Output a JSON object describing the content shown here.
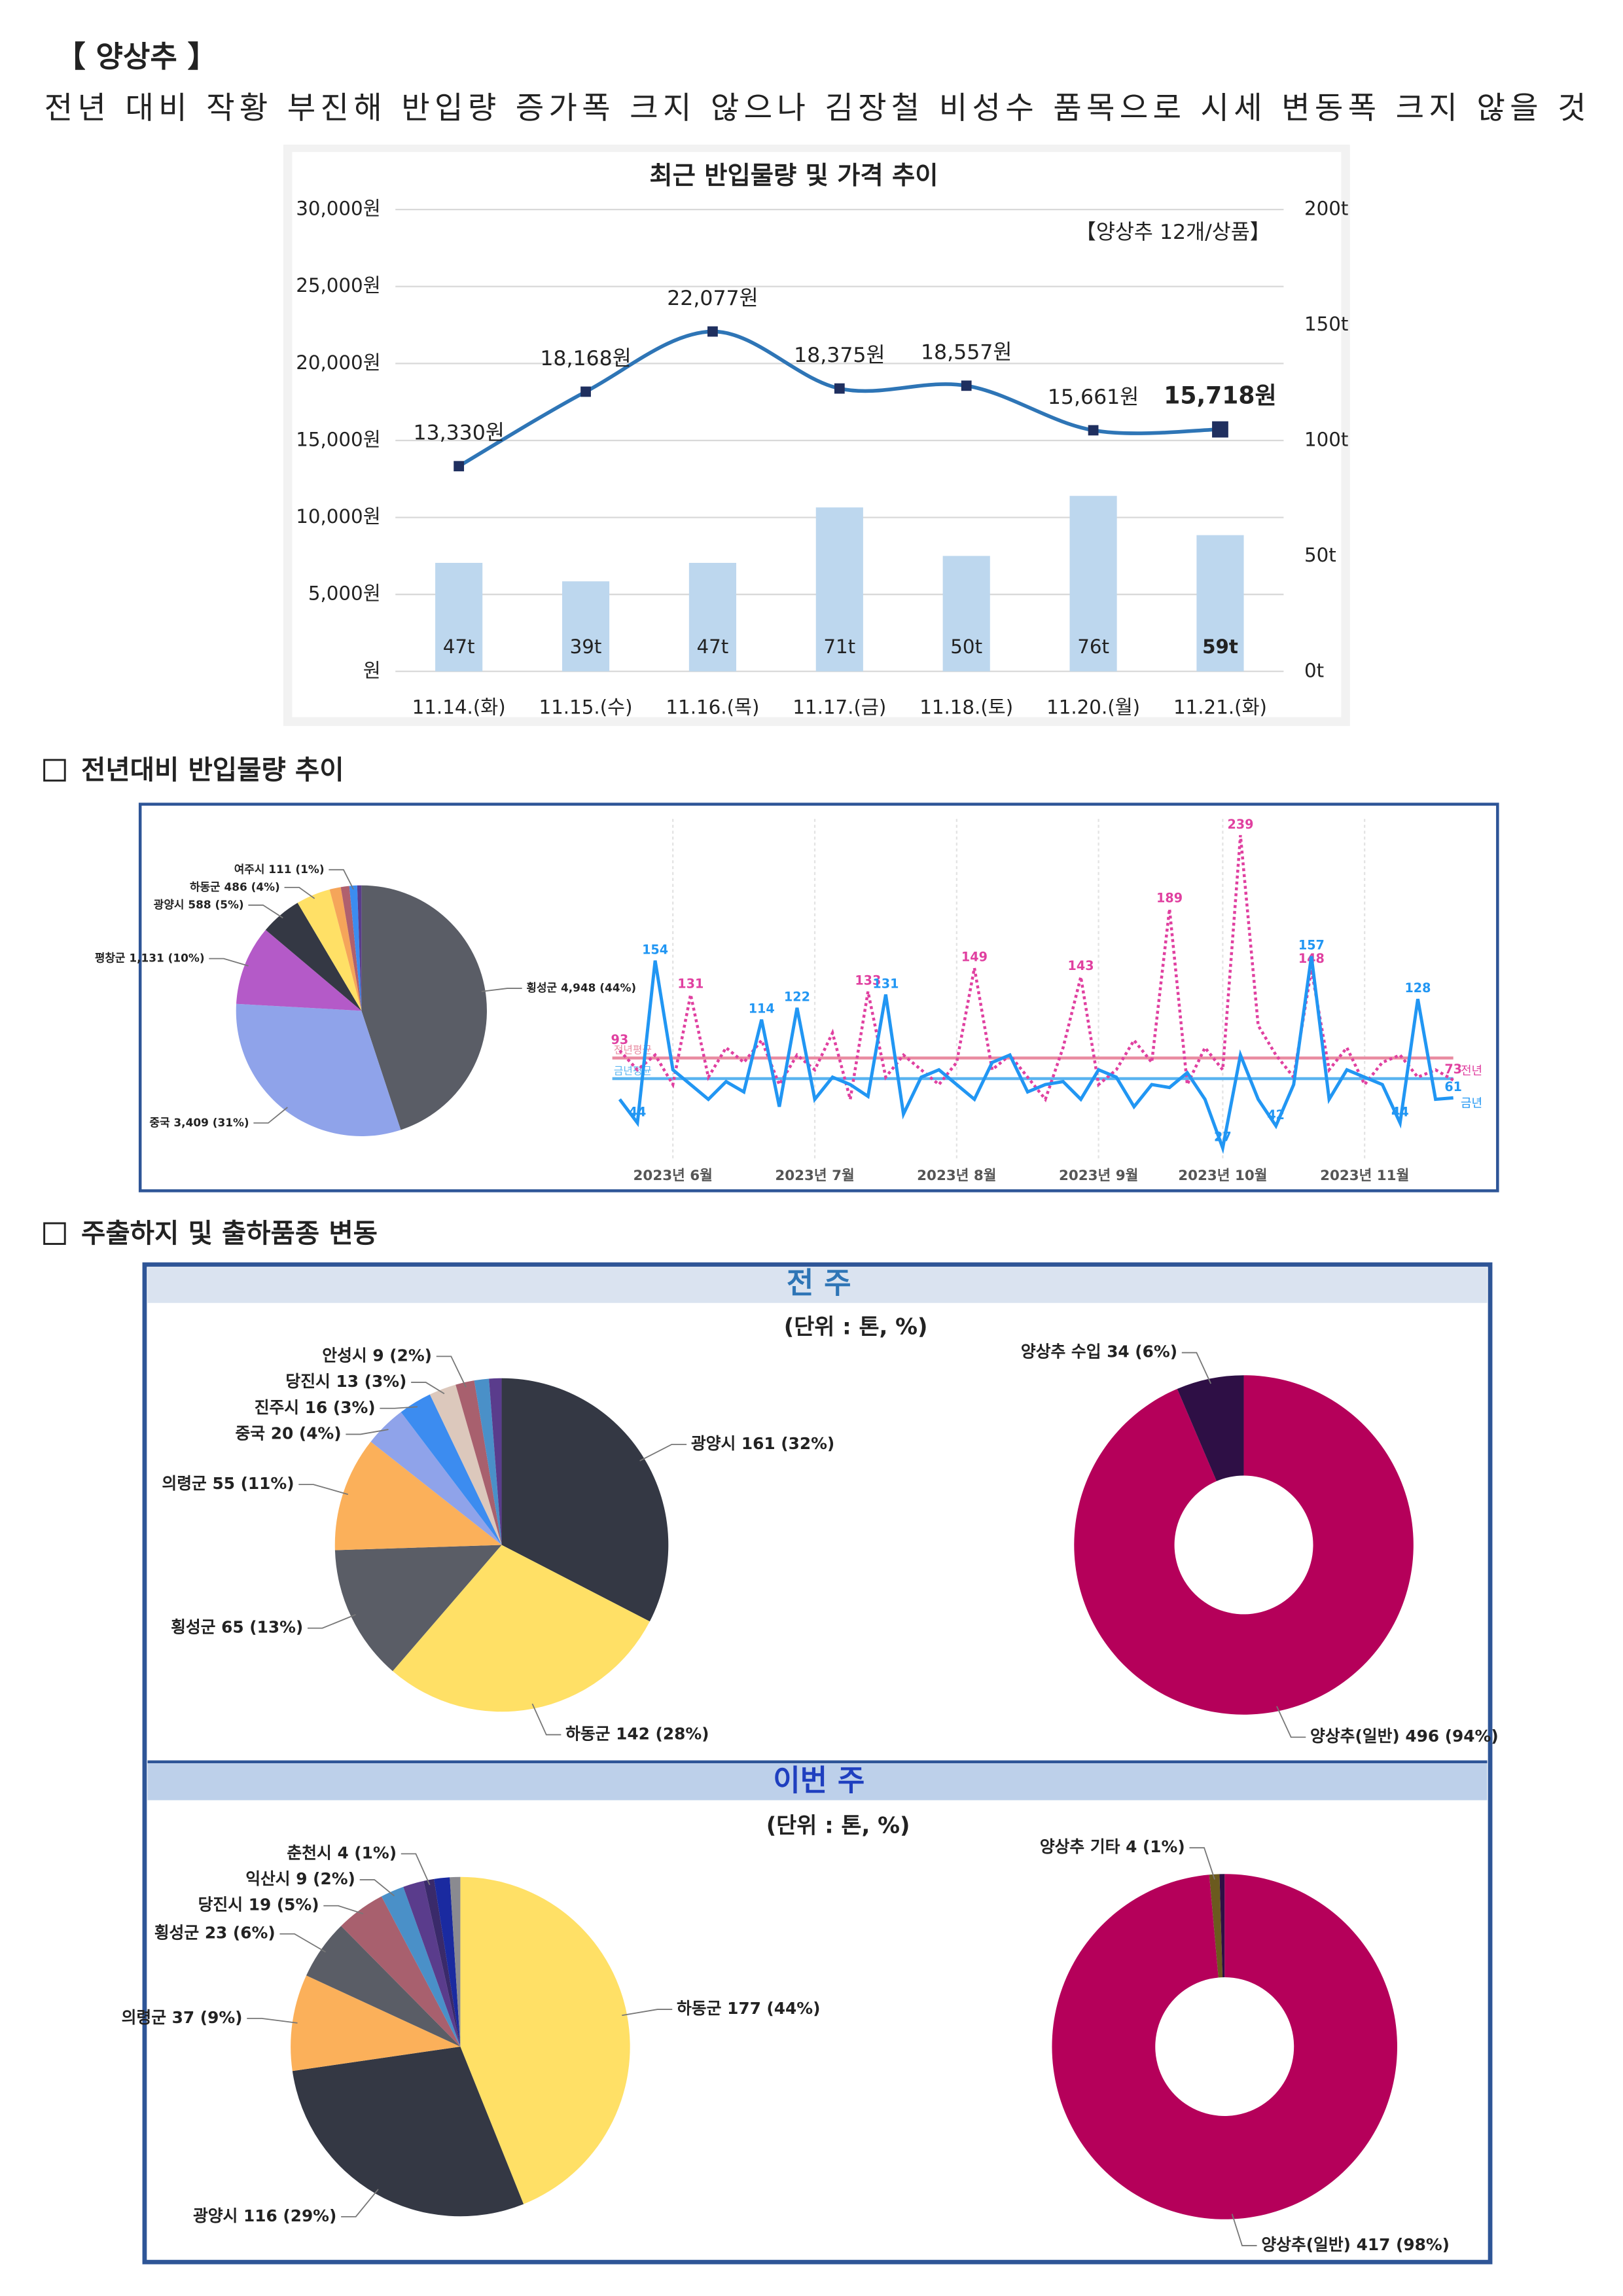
{
  "header": {
    "title": "【 양상추 】",
    "summary": "전년 대비 작황 부진해 반입량 증가폭 크지 않으나 김장철 비성수 품목으로 시세 변동폭 크지 않을 것"
  },
  "sections": [
    "전년대비 반입물량 추이",
    "주출하지 및 출하품종 변동"
  ],
  "panels": [
    {
      "header": "전 주",
      "unit": "(단위 : 톤, %)"
    },
    {
      "header": "이번 주",
      "unit": "(단위 : 톤, %)"
    }
  ],
  "chart_data": [
    {
      "type": "bar_line",
      "title": "최근 반입물량 및 가격 추이",
      "annotation": "【양상추 12개/상품】",
      "categories": [
        "11.14.(화)",
        "11.15.(수)",
        "11.16.(목)",
        "11.17.(금)",
        "11.18.(토)",
        "11.20.(월)",
        "11.21.(화)"
      ],
      "series": [
        {
          "type": "bar",
          "axis": "y2",
          "color": "#bdd7ee",
          "values": [
            47,
            39,
            47,
            71,
            50,
            76,
            59
          ],
          "value_labels": [
            "47t",
            "39t",
            "47t",
            "71t",
            "50t",
            "76t",
            "59t"
          ]
        },
        {
          "type": "line",
          "color": "#2e75b6",
          "marker_color": "#1f2f5f",
          "values": [
            13330,
            18168,
            22077,
            18375,
            18557,
            15661,
            15718
          ],
          "value_labels": [
            "13,330원",
            "18,168원",
            "22,077원",
            "18,375원",
            "18,557원",
            "15,661원",
            "15,718원"
          ]
        }
      ],
      "ylim": [
        0,
        30000
      ],
      "yticks": [
        {
          "value": 0,
          "label": "원"
        },
        {
          "value": 5000,
          "label": "5,000원"
        },
        {
          "value": 10000,
          "label": "10,000원"
        },
        {
          "value": 15000,
          "label": "15,000원"
        },
        {
          "value": 20000,
          "label": "20,000원"
        },
        {
          "value": 25000,
          "label": "25,000원"
        },
        {
          "value": 30000,
          "label": "30,000원"
        }
      ],
      "y2lim": [
        0,
        200
      ],
      "y2ticks": [
        {
          "value": 0,
          "label": "0t"
        },
        {
          "value": 50,
          "label": "50t"
        },
        {
          "value": 100,
          "label": "100t"
        },
        {
          "value": 150,
          "label": "150t"
        },
        {
          "value": 200,
          "label": "200t"
        }
      ],
      "grid": true
    },
    {
      "type": "pie",
      "categories": [
        "횡성군",
        "중국",
        "평창군",
        "광양시",
        "하동군",
        null,
        null,
        "여주시",
        null
      ],
      "values": [
        4948,
        3409,
        1131,
        588,
        486,
        160,
        120,
        111,
        60
      ],
      "value_labels": [
        "4,948 (44%)",
        "3,409 (31%)",
        "1,131 (10%)",
        "588 (5%)",
        "486 (4%)",
        null,
        null,
        "111 (1%)",
        null
      ],
      "colors": [
        "#5a5d66",
        "#8fa3ea",
        "#b45ac8",
        "#343844",
        "#ffe066",
        "#f5a55a",
        "#b0606e",
        "#3c8cf0",
        "#5a3c8c"
      ]
    },
    {
      "type": "line",
      "series": [
        {
          "name": "전년",
          "color": "#e040a0",
          "dash": true,
          "values": [
            93,
            80,
            90,
            70,
            131,
            75,
            95,
            85,
            100,
            70,
            90,
            80,
            105,
            60,
            133,
            75,
            90,
            80,
            70,
            85,
            149,
            80,
            90,
            75,
            60,
            95,
            143,
            70,
            80,
            100,
            85,
            189,
            70,
            95,
            80,
            239,
            110,
            90,
            75,
            148,
            80,
            95,
            70,
            85,
            90,
            75,
            80,
            73
          ],
          "value_labels": [
            "93",
            null,
            null,
            null,
            "131",
            null,
            null,
            null,
            null,
            null,
            null,
            null,
            null,
            null,
            "133",
            null,
            null,
            null,
            null,
            null,
            "149",
            null,
            null,
            null,
            null,
            null,
            "143",
            null,
            null,
            null,
            null,
            "189",
            null,
            null,
            null,
            "239",
            null,
            null,
            null,
            "148",
            null,
            null,
            null,
            null,
            null,
            null,
            null,
            "73"
          ]
        },
        {
          "name": "금년",
          "color": "#2196f3",
          "dash": false,
          "values": [
            60,
            44,
            154,
            80,
            70,
            60,
            72,
            65,
            114,
            55,
            122,
            60,
            75,
            70,
            62,
            131,
            50,
            75,
            80,
            70,
            60,
            85,
            90,
            65,
            70,
            72,
            60,
            80,
            75,
            55,
            70,
            68,
            78,
            60,
            27,
            90,
            60,
            42,
            70,
            157,
            60,
            80,
            75,
            70,
            44,
            128,
            60,
            61
          ],
          "value_labels": [
            null,
            "44",
            "154",
            null,
            null,
            null,
            null,
            null,
            "114",
            null,
            "122",
            null,
            null,
            null,
            null,
            "131",
            null,
            null,
            null,
            null,
            null,
            null,
            null,
            null,
            null,
            null,
            null,
            null,
            null,
            null,
            null,
            null,
            null,
            null,
            "27",
            null,
            null,
            "42",
            null,
            "157",
            null,
            null,
            null,
            null,
            "44",
            "128",
            null,
            "61"
          ]
        }
      ],
      "ref_lines": [
        {
          "label": "전년평균",
          "value": 88,
          "color": "#e88aa0"
        },
        {
          "label": "금년평균",
          "value": 74,
          "color": "#5ab4f0"
        }
      ],
      "xlim": [
        0,
        47
      ],
      "ylim": [
        20,
        250
      ],
      "xticks": [
        {
          "value": 3,
          "label": "2023년 6월"
        },
        {
          "value": 11,
          "label": "2023년 7월"
        },
        {
          "value": 19,
          "label": "2023년 8월"
        },
        {
          "value": 27,
          "label": "2023년 9월"
        },
        {
          "value": 34,
          "label": "2023년 10월"
        },
        {
          "value": 42,
          "label": "2023년 11월"
        }
      ]
    },
    {
      "type": "pie",
      "categories": [
        "광양시",
        "하동군",
        "횡성군",
        "의령군",
        "중국",
        "진주시",
        "당진시",
        "안성시",
        null,
        null
      ],
      "values": [
        161,
        142,
        65,
        55,
        20,
        16,
        13,
        9,
        7,
        6
      ],
      "value_labels": [
        "161 (32%)",
        "142 (28%)",
        "65 (13%)",
        "55 (11%)",
        "20 (4%)",
        "16 (3%)",
        "13 (3%)",
        "9 (2%)",
        null,
        null
      ],
      "colors": [
        "#343844",
        "#ffe066",
        "#5a5d66",
        "#fbb05a",
        "#8fa3ea",
        "#3c8cf0",
        "#dcc8bc",
        "#a8606e",
        "#4a90c8",
        "#5a3c8c"
      ]
    },
    {
      "type": "donut",
      "categories": [
        "양상추(일반)",
        "양상추 수입"
      ],
      "values": [
        496,
        34
      ],
      "value_labels": [
        "496 (94%)",
        "34 (6%)"
      ],
      "colors": [
        "#b5005a",
        "#2e0f45"
      ]
    },
    {
      "type": "pie",
      "categories": [
        "하동군",
        "광양시",
        "의령군",
        "횡성군",
        "당진시",
        "익산시",
        null,
        "춘천시",
        null,
        null
      ],
      "values": [
        177,
        116,
        37,
        23,
        19,
        9,
        8,
        4,
        6,
        4
      ],
      "value_labels": [
        "177 (44%)",
        "116 (29%)",
        "37 (9%)",
        "23 (6%)",
        "19 (5%)",
        "9 (2%)",
        null,
        "4 (1%)",
        null,
        null
      ],
      "colors": [
        "#ffe066",
        "#343844",
        "#fbb05a",
        "#5a5d66",
        "#a8606e",
        "#4a90c8",
        "#5a3c8c",
        "#3a2a6a",
        "#1a2aa0",
        "#8a8a90"
      ]
    },
    {
      "type": "donut",
      "categories": [
        "양상추(일반)",
        "양상추 기타",
        null
      ],
      "values": [
        417,
        4,
        2
      ],
      "value_labels": [
        "417 (98%)",
        "4 (1%)",
        null
      ],
      "colors": [
        "#b5005a",
        "#6b5a1e",
        "#2e0f45"
      ]
    }
  ]
}
